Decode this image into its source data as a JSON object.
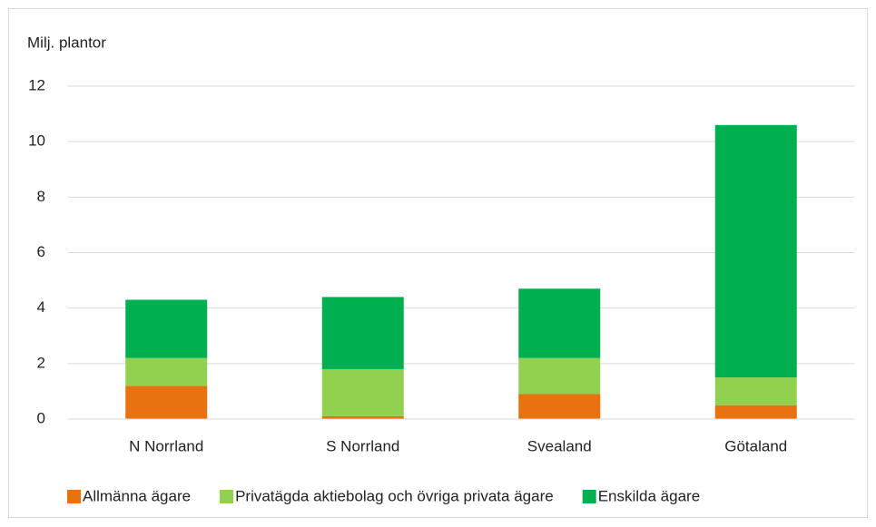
{
  "chart_data": {
    "type": "bar",
    "stacked": true,
    "ylabel": "Milj. plantor",
    "categories": [
      "N Norrland",
      "S Norrland",
      "Svealand",
      "Götaland"
    ],
    "series": [
      {
        "name": "Allmänna ägare",
        "color": "#e87110",
        "values": [
          1.2,
          0.1,
          0.9,
          0.5
        ]
      },
      {
        "name": "Privatägda aktiebolag och övriga privata ägare",
        "color": "#92d050",
        "values": [
          1.0,
          1.7,
          1.3,
          1.0
        ]
      },
      {
        "name": "Enskilda ägare",
        "color": "#00b050",
        "values": [
          2.1,
          2.6,
          2.5,
          9.1
        ]
      }
    ],
    "ylim": [
      0,
      12
    ],
    "yticks": [
      0,
      2,
      4,
      6,
      8,
      10,
      12
    ],
    "grid": true,
    "legend": "bottom"
  }
}
